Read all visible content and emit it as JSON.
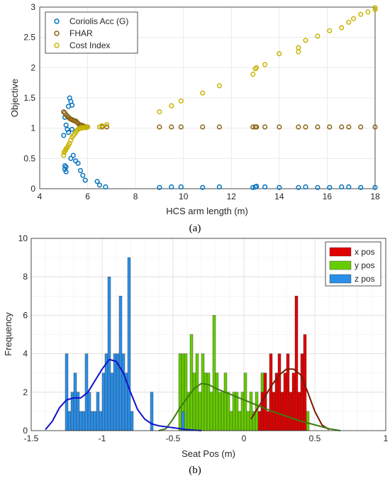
{
  "figure": {
    "panel_a_label": "(a)",
    "panel_b_label": "(b)"
  },
  "chart_data": [
    {
      "type": "scatter",
      "panel": "(a)",
      "xlabel": "HCS arm length (m)",
      "ylabel": "Objective",
      "xlim": [
        4,
        18
      ],
      "ylim": [
        0,
        3
      ],
      "xticks": [
        4,
        6,
        8,
        10,
        12,
        14,
        16,
        18
      ],
      "yticks": [
        0,
        0.5,
        1,
        1.5,
        2,
        2.5,
        3
      ],
      "yticklabels": [
        "0",
        "0.5",
        "1",
        "1.5",
        "2",
        "2.5",
        "3"
      ],
      "grid": true,
      "legend_position": "top-left",
      "series": [
        {
          "name": "Coriolis Acc (G)",
          "color": "#0072BD",
          "x": [
            5.0,
            5.05,
            5.1,
            5.15,
            5.2,
            5.25,
            5.3,
            5.35,
            5.0,
            5.05,
            5.1,
            5.2,
            5.3,
            5.4,
            5.5,
            5.6,
            5.7,
            5.8,
            5.9,
            5.05,
            5.1,
            5.35,
            6.4,
            6.5,
            6.75,
            9.0,
            9.5,
            9.9,
            10.8,
            11.5,
            12.9,
            13.0,
            13.05,
            13.4,
            14.0,
            14.8,
            15.1,
            15.6,
            16.1,
            16.6,
            16.9,
            17.4,
            18.0
          ],
          "y": [
            1.27,
            1.18,
            1.05,
            0.98,
            1.36,
            1.5,
            1.44,
            1.38,
            0.88,
            0.38,
            0.36,
            0.93,
            0.5,
            0.55,
            0.46,
            0.42,
            0.3,
            0.22,
            0.14,
            0.32,
            0.28,
            0.98,
            0.12,
            0.06,
            0.03,
            0.02,
            0.03,
            0.03,
            0.02,
            0.03,
            0.02,
            0.03,
            0.04,
            0.03,
            0.02,
            0.02,
            0.03,
            0.02,
            0.02,
            0.03,
            0.03,
            0.02,
            0.02
          ]
        },
        {
          "name": "FHAR",
          "color": "#8C6310",
          "x": [
            5.0,
            5.05,
            5.1,
            5.15,
            5.2,
            5.25,
            5.3,
            5.35,
            5.4,
            5.45,
            5.5,
            5.55,
            5.6,
            5.65,
            5.7,
            5.75,
            5.8,
            5.85,
            5.9,
            5.95,
            6.0,
            6.5,
            6.6,
            6.8,
            9.0,
            9.5,
            9.9,
            10.8,
            11.5,
            12.9,
            13.0,
            13.05,
            13.4,
            14.0,
            14.8,
            15.1,
            15.6,
            16.1,
            16.6,
            16.9,
            17.4,
            18.0
          ],
          "y": [
            1.27,
            1.25,
            1.22,
            1.2,
            1.18,
            1.16,
            1.15,
            1.14,
            1.13,
            1.12,
            1.12,
            1.1,
            1.08,
            1.06,
            1.05,
            1.05,
            1.04,
            1.03,
            1.02,
            1.02,
            1.02,
            1.02,
            1.02,
            1.02,
            1.02,
            1.02,
            1.02,
            1.02,
            1.02,
            1.02,
            1.02,
            1.02,
            1.02,
            1.02,
            1.02,
            1.02,
            1.02,
            1.02,
            1.02,
            1.02,
            1.02,
            1.02
          ]
        },
        {
          "name": "Cost Index",
          "color": "#C8B400",
          "x": [
            5.0,
            5.02,
            5.05,
            5.08,
            5.1,
            5.15,
            5.2,
            5.25,
            5.3,
            5.35,
            5.4,
            5.45,
            5.5,
            5.55,
            5.6,
            5.65,
            5.7,
            5.75,
            5.8,
            5.85,
            5.9,
            5.95,
            6.0,
            6.5,
            6.6,
            6.8,
            9.0,
            9.5,
            9.9,
            10.8,
            11.5,
            12.9,
            13.0,
            13.05,
            13.4,
            14.0,
            14.8,
            14.8,
            15.1,
            15.6,
            16.1,
            16.6,
            16.9,
            17.1,
            17.4,
            17.7,
            18.0,
            18.0
          ],
          "y": [
            0.55,
            0.6,
            0.62,
            0.64,
            0.66,
            0.68,
            0.72,
            0.75,
            0.8,
            0.85,
            0.88,
            0.9,
            0.93,
            0.96,
            0.98,
            0.99,
            1.0,
            1.0,
            1.01,
            1.01,
            1.01,
            1.01,
            1.02,
            1.02,
            1.04,
            1.06,
            1.27,
            1.37,
            1.45,
            1.58,
            1.7,
            1.89,
            1.98,
            2.0,
            2.05,
            2.23,
            2.26,
            2.33,
            2.45,
            2.52,
            2.61,
            2.66,
            2.75,
            2.81,
            2.88,
            2.92,
            2.96,
            2.99
          ]
        }
      ]
    },
    {
      "type": "bar",
      "subtype": "histogram-with-density",
      "panel": "(b)",
      "xlabel": "Seat Pos (m)",
      "ylabel": "Frequency",
      "xlim": [
        -1.5,
        1
      ],
      "ylim": [
        0,
        10
      ],
      "xticks": [
        -1.5,
        -1,
        -0.5,
        0,
        0.5,
        1
      ],
      "xticklabels": [
        "-1.5",
        "-1",
        "-0.5",
        "0",
        "0.5",
        "1"
      ],
      "yticks": [
        0,
        2,
        4,
        6,
        8,
        10
      ],
      "yticklabels": [
        "0",
        "2",
        "4",
        "6",
        "8",
        "10"
      ],
      "grid": true,
      "legend_position": "top-right",
      "bin_width": 0.02,
      "series": [
        {
          "name": "x pos",
          "color": "#E00000",
          "fit_color": "#7A1A00",
          "bins": [
            [
              0.1,
              1
            ],
            [
              0.12,
              2
            ],
            [
              0.14,
              3
            ],
            [
              0.16,
              1
            ],
            [
              0.18,
              4
            ],
            [
              0.2,
              2
            ],
            [
              0.22,
              3
            ],
            [
              0.24,
              4
            ],
            [
              0.26,
              2
            ],
            [
              0.28,
              3
            ],
            [
              0.3,
              4
            ],
            [
              0.32,
              2
            ],
            [
              0.34,
              3
            ],
            [
              0.36,
              7
            ],
            [
              0.38,
              2
            ],
            [
              0.4,
              4
            ],
            [
              0.42,
              5
            ]
          ],
          "fit": [
            [
              0.05,
              0.6
            ],
            [
              0.1,
              1.2
            ],
            [
              0.15,
              1.8
            ],
            [
              0.2,
              2.4
            ],
            [
              0.25,
              2.9
            ],
            [
              0.3,
              3.2
            ],
            [
              0.35,
              3.2
            ],
            [
              0.4,
              2.9
            ],
            [
              0.45,
              2.0
            ],
            [
              0.5,
              1.0
            ],
            [
              0.55,
              0.3
            ],
            [
              0.6,
              0.05
            ]
          ]
        },
        {
          "name": "y pos",
          "color": "#66CC00",
          "fit_color": "#3D7A10",
          "bins": [
            [
              -0.46,
              4
            ],
            [
              -0.44,
              4
            ],
            [
              -0.42,
              4
            ],
            [
              -0.4,
              2
            ],
            [
              -0.38,
              5
            ],
            [
              -0.36,
              3
            ],
            [
              -0.34,
              4
            ],
            [
              -0.32,
              2
            ],
            [
              -0.3,
              4
            ],
            [
              -0.28,
              3
            ],
            [
              -0.26,
              3
            ],
            [
              -0.24,
              2
            ],
            [
              -0.22,
              6
            ],
            [
              -0.2,
              3
            ],
            [
              -0.18,
              2
            ],
            [
              -0.16,
              2
            ],
            [
              -0.14,
              3
            ],
            [
              -0.12,
              2
            ],
            [
              -0.1,
              1
            ],
            [
              -0.08,
              2
            ],
            [
              -0.06,
              2
            ],
            [
              -0.04,
              1
            ],
            [
              -0.02,
              2
            ],
            [
              0.0,
              3
            ],
            [
              0.02,
              1
            ],
            [
              0.04,
              2
            ],
            [
              0.06,
              1
            ],
            [
              0.08,
              2
            ],
            [
              0.1,
              1
            ],
            [
              0.12,
              3
            ],
            [
              0.14,
              2
            ],
            [
              0.16,
              1
            ],
            [
              0.18,
              2
            ],
            [
              0.2,
              1
            ],
            [
              0.22,
              2
            ],
            [
              0.24,
              1
            ],
            [
              0.26,
              2
            ],
            [
              0.28,
              1
            ],
            [
              0.3,
              2
            ],
            [
              0.32,
              1
            ],
            [
              0.34,
              1
            ],
            [
              0.36,
              2
            ],
            [
              0.38,
              1
            ],
            [
              0.4,
              2
            ],
            [
              0.42,
              1
            ],
            [
              0.44,
              1
            ]
          ],
          "fit": [
            [
              -0.6,
              0.0
            ],
            [
              -0.55,
              0.1
            ],
            [
              -0.5,
              0.6
            ],
            [
              -0.45,
              1.2
            ],
            [
              -0.4,
              1.7
            ],
            [
              -0.35,
              2.2
            ],
            [
              -0.3,
              2.45
            ],
            [
              -0.25,
              2.4
            ],
            [
              -0.2,
              2.2
            ],
            [
              -0.1,
              1.9
            ],
            [
              0.0,
              1.6
            ],
            [
              0.1,
              1.3
            ],
            [
              0.2,
              1.0
            ],
            [
              0.3,
              0.75
            ],
            [
              0.4,
              0.5
            ],
            [
              0.5,
              0.3
            ],
            [
              0.6,
              0.1
            ],
            [
              0.68,
              0.0
            ]
          ]
        },
        {
          "name": "z pos",
          "color": "#2B8FE8",
          "fit_color": "#1010CC",
          "bins": [
            [
              -1.26,
              4
            ],
            [
              -1.24,
              1
            ],
            [
              -1.22,
              2
            ],
            [
              -1.2,
              3
            ],
            [
              -1.18,
              2
            ],
            [
              -1.16,
              1
            ],
            [
              -1.14,
              1
            ],
            [
              -1.12,
              4
            ],
            [
              -1.1,
              2
            ],
            [
              -1.08,
              1
            ],
            [
              -1.06,
              1
            ],
            [
              -1.04,
              2
            ],
            [
              -1.02,
              1
            ],
            [
              -1.0,
              3
            ],
            [
              -0.98,
              4
            ],
            [
              -0.96,
              8
            ],
            [
              -0.94,
              3
            ],
            [
              -0.92,
              4
            ],
            [
              -0.9,
              4
            ],
            [
              -0.88,
              7
            ],
            [
              -0.86,
              4
            ],
            [
              -0.84,
              3
            ],
            [
              -0.82,
              9
            ],
            [
              -0.8,
              1
            ],
            [
              -0.66,
              2
            ],
            [
              -0.44,
              1
            ]
          ],
          "fit": [
            [
              -1.4,
              0.05
            ],
            [
              -1.35,
              0.5
            ],
            [
              -1.3,
              1.2
            ],
            [
              -1.25,
              1.6
            ],
            [
              -1.2,
              1.7
            ],
            [
              -1.15,
              1.7
            ],
            [
              -1.1,
              2.0
            ],
            [
              -1.05,
              2.6
            ],
            [
              -1.0,
              3.2
            ],
            [
              -0.95,
              3.7
            ],
            [
              -0.9,
              3.6
            ],
            [
              -0.85,
              3.0
            ],
            [
              -0.8,
              2.0
            ],
            [
              -0.75,
              1.1
            ],
            [
              -0.7,
              0.6
            ],
            [
              -0.65,
              0.35
            ],
            [
              -0.6,
              0.25
            ],
            [
              -0.5,
              0.15
            ],
            [
              -0.4,
              0.05
            ],
            [
              -0.3,
              0.0
            ]
          ]
        }
      ]
    }
  ]
}
